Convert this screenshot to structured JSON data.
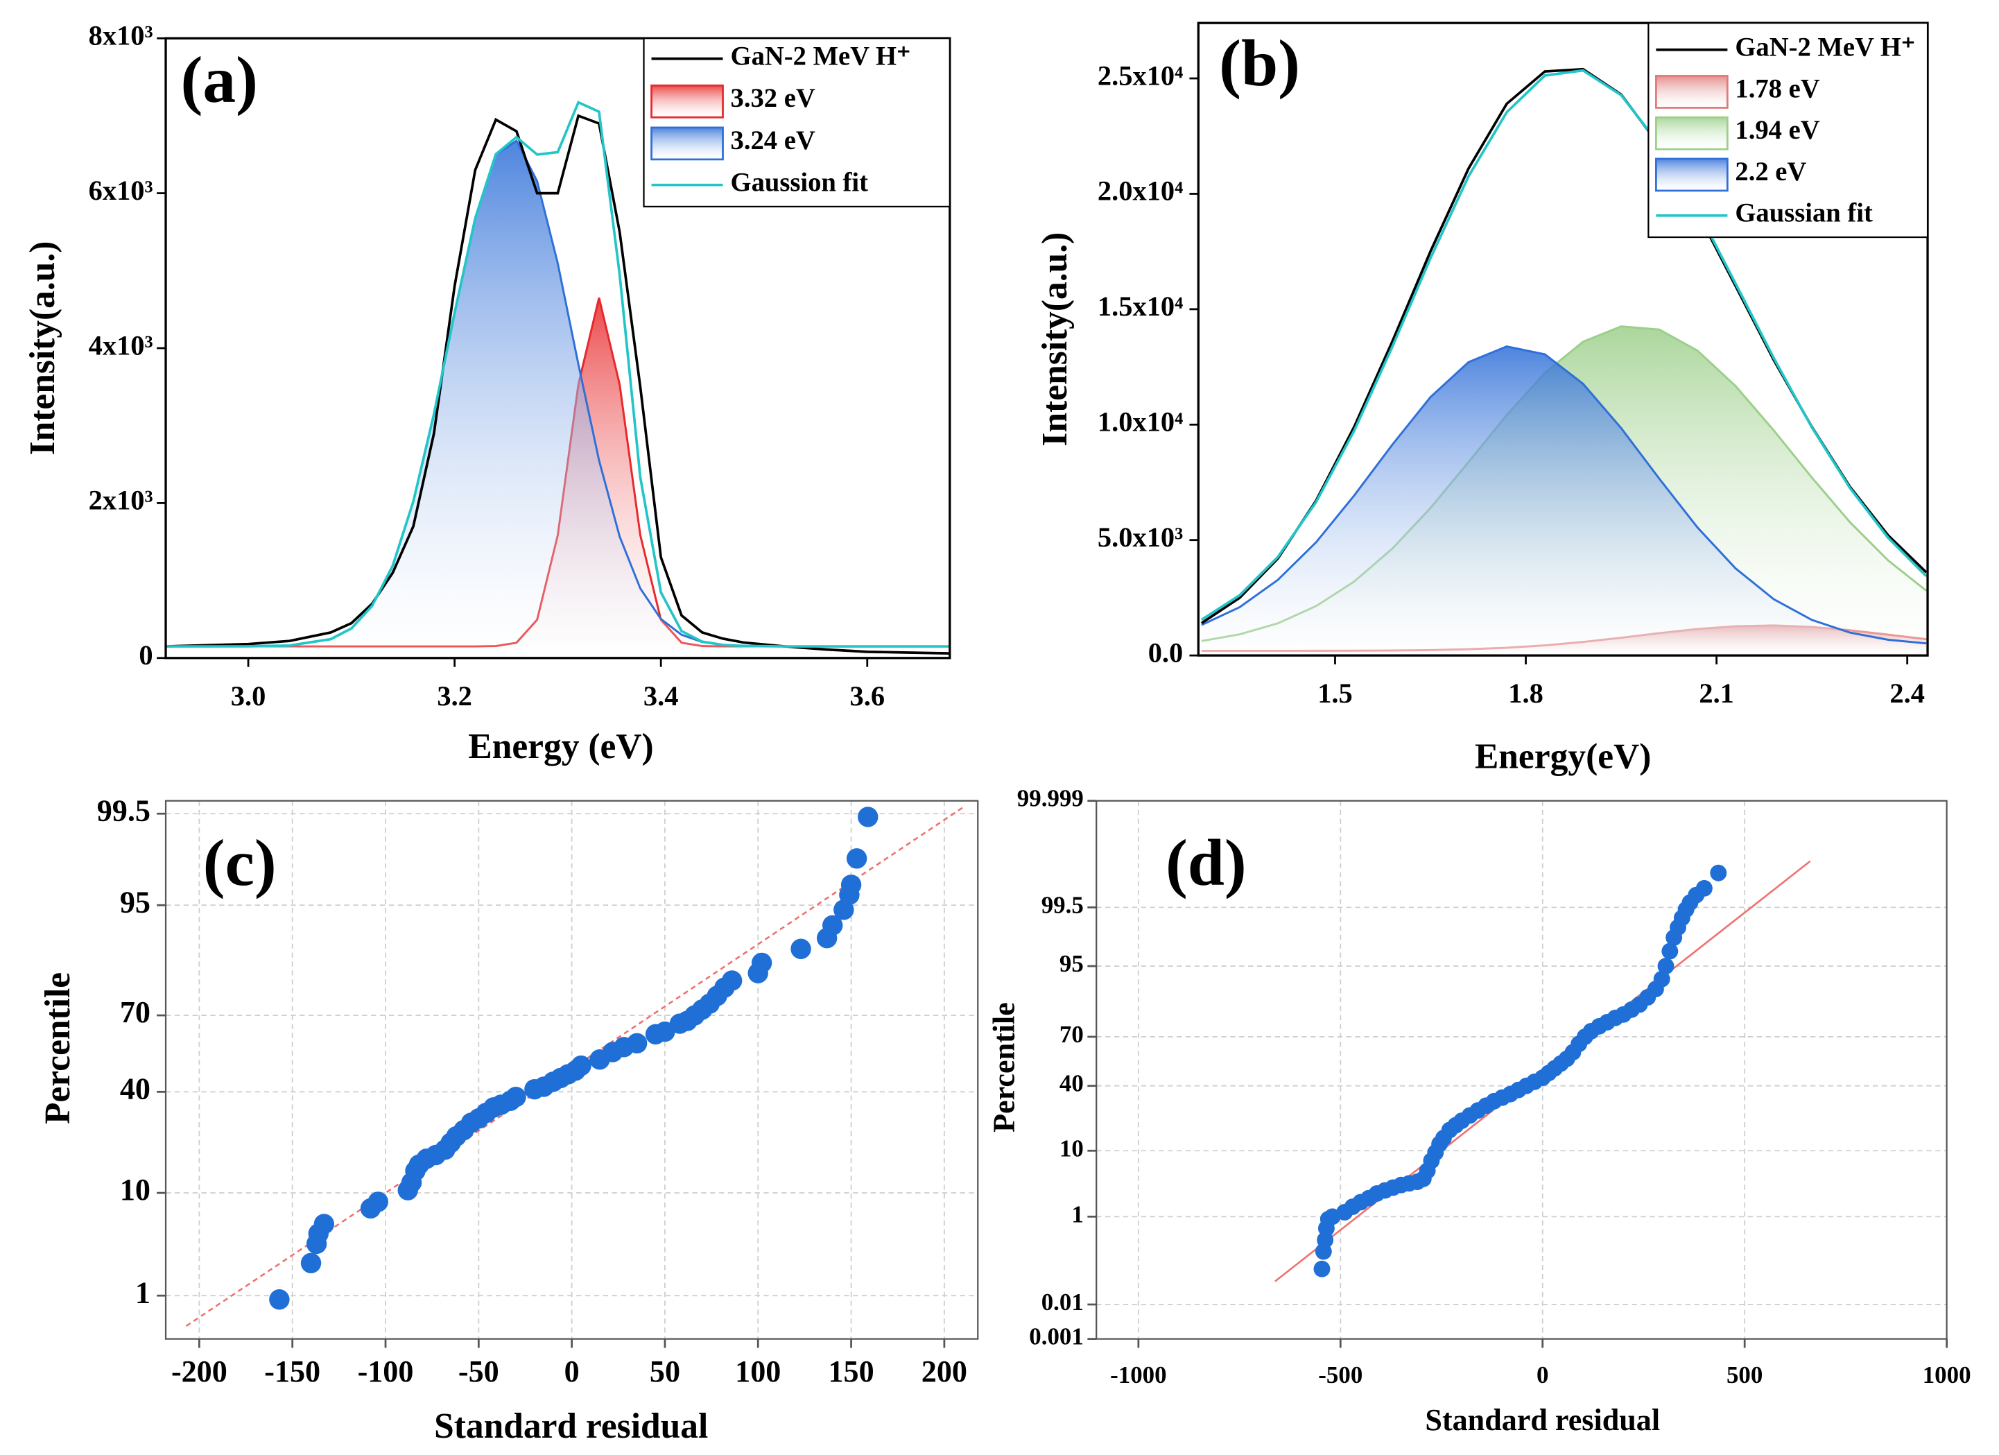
{
  "chart_data": [
    {
      "type": "line",
      "title": "(a)",
      "xlabel": "Energy (eV)",
      "ylabel": "Intensity(a.u.)",
      "xlim": [
        2.92,
        3.68
      ],
      "ylim": [
        0,
        8000
      ],
      "xticks": [
        {
          "value": 3,
          "label": "3.0"
        },
        3.2,
        3.4,
        3.6
      ],
      "yticks": [
        0,
        {
          "value": 2000,
          "label": "2x10³"
        },
        {
          "value": 4000,
          "label": "4x10³"
        },
        {
          "value": 6000,
          "label": "6x10³"
        },
        {
          "value": 8000,
          "label": "8x10³"
        }
      ],
      "legend": "upper right",
      "x": [
        2.92,
        2.96,
        3.0,
        3.04,
        3.08,
        3.1,
        3.12,
        3.14,
        3.16,
        3.18,
        3.2,
        3.22,
        3.24,
        3.26,
        3.28,
        3.3,
        3.32,
        3.34,
        3.36,
        3.38,
        3.4,
        3.42,
        3.44,
        3.46,
        3.48,
        3.52,
        3.56,
        3.6,
        3.64,
        3.68
      ],
      "series": [
        {
          "name": "GaN-2 MeV H⁺",
          "color": "#000000",
          "style": "line",
          "values": [
            150,
            165,
            180,
            220,
            330,
            450,
            700,
            1100,
            1700,
            2900,
            4800,
            6300,
            6950,
            6800,
            6000,
            6000,
            7000,
            6900,
            5500,
            3500,
            1300,
            550,
            330,
            250,
            200,
            150,
            110,
            80,
            70,
            60
          ]
        },
        {
          "name": "3.32 eV",
          "color": "#e8282a",
          "style": "area",
          "values": [
            150,
            150,
            150,
            150,
            150,
            150,
            150,
            150,
            150,
            150,
            150,
            150,
            154,
            197,
            494,
            1585,
            3531,
            4650,
            3531,
            1585,
            494,
            197,
            154,
            150,
            150,
            150,
            150,
            150,
            150,
            150
          ]
        },
        {
          "name": "3.24 eV",
          "color": "#2f6fd8",
          "style": "area",
          "values": [
            150,
            150,
            151,
            161,
            244,
            382,
            672,
            1191,
            2021,
            3148,
            4454,
            5676,
            6500,
            6677,
            6155,
            5095,
            3792,
            2552,
            1568,
            898,
            503,
            300,
            207,
            169,
            156,
            150,
            150,
            150,
            150,
            150
          ]
        },
        {
          "name": "Gaussion fit",
          "color": "#22c5c8",
          "style": "line",
          "values": [
            150,
            150,
            151,
            161,
            244,
            382,
            672,
            1191,
            2021,
            3148,
            4454,
            5676,
            6504,
            6724,
            6499,
            6530,
            7173,
            7052,
            4949,
            2333,
            847,
            347,
            211,
            169,
            156,
            150,
            150,
            150,
            150,
            150
          ]
        }
      ]
    },
    {
      "type": "line",
      "title": "(b)",
      "xlabel": "Energy(eV)",
      "ylabel": "Intensity(a.u.)",
      "xlim": [
        1.285,
        2.432
      ],
      "ylim": [
        0,
        27400
      ],
      "xticks": [
        1.5,
        1.8,
        2.1,
        2.4
      ],
      "yticks": [
        {
          "value": 0,
          "label": "0.0"
        },
        {
          "value": 5000,
          "label": "5.0x10³"
        },
        {
          "value": 10000,
          "label": "1.0x10⁴"
        },
        {
          "value": 15000,
          "label": "1.5x10⁴"
        },
        {
          "value": 20000,
          "label": "2.0x10⁴"
        },
        {
          "value": 25000,
          "label": "2.5x10⁴"
        }
      ],
      "legend": "upper right",
      "x": [
        1.29,
        1.35,
        1.41,
        1.47,
        1.53,
        1.59,
        1.65,
        1.71,
        1.77,
        1.83,
        1.89,
        1.95,
        2.01,
        2.07,
        2.13,
        2.19,
        2.25,
        2.31,
        2.37,
        2.43
      ],
      "series": [
        {
          "name": "GaN-2 MeV H⁺",
          "color": "#000000",
          "style": "line",
          "values": [
            1400,
            2500,
            4200,
            6700,
            9900,
            13600,
            17500,
            21100,
            23900,
            25300,
            25400,
            24300,
            22100,
            19200,
            16000,
            12800,
            9900,
            7300,
            5200,
            3600
          ]
        },
        {
          "name": "1.78 eV",
          "color": "#e07a7a",
          "style": "area",
          "values": [
            200,
            200,
            201,
            202,
            206,
            214,
            233,
            270,
            335,
            438,
            585,
            768,
            967,
            1146,
            1266,
            1299,
            1235,
            1091,
            901,
            704
          ]
        },
        {
          "name": "1.94 eV",
          "color": "#9ccf8a",
          "style": "area",
          "values": [
            626,
            915,
            1392,
            2137,
            3200,
            4627,
            6385,
            8380,
            10412,
            12240,
            13590,
            14255,
            14120,
            13207,
            11670,
            9750,
            7703,
            5770,
            4114,
            2806
          ]
        },
        {
          "name": "2.2 eV",
          "color": "#2f6fd8",
          "style": "area",
          "values": [
            1321,
            2092,
            3273,
            4900,
            6927,
            9130,
            11190,
            12710,
            13386,
            13046,
            11770,
            9850,
            7656,
            5546,
            3771,
            2437,
            1539,
            988,
            680,
            523
          ]
        },
        {
          "name": "Gaussian fit",
          "color": "#22c5c8",
          "style": "line",
          "values": [
            1547,
            2607,
            4266,
            6639,
            9733,
            13371,
            17208,
            20760,
            23533,
            25124,
            25345,
            24273,
            22143,
            19299,
            16107,
            12886,
            9877,
            7249,
            5095,
            3433
          ]
        }
      ]
    },
    {
      "type": "scatter",
      "title": "(c)",
      "xlabel": "Standard residual",
      "ylabel": "Percentile",
      "yscale": "probability",
      "grid": true,
      "xlim": [
        -218,
        218
      ],
      "ylim": [
        0.283,
        99.66
      ],
      "xticks": [
        -200,
        -150,
        -100,
        -50,
        0,
        50,
        100,
        150,
        200
      ],
      "yticks": [
        1,
        10,
        40,
        70,
        95,
        99.5
      ],
      "series": [
        {
          "color": "#1f6fd6",
          "style": "points",
          "x": [
            -157,
            -140,
            -137,
            -136,
            -133,
            -108,
            -104,
            -88,
            -86,
            -84,
            -82,
            -78,
            -73,
            -68,
            -65,
            -62,
            -58,
            -54,
            -50,
            -46,
            -42,
            -38,
            -33,
            -30,
            -20,
            -15,
            -10,
            -6,
            -2,
            2,
            5,
            15,
            22,
            28,
            35,
            45,
            50,
            58,
            62,
            66,
            70,
            74,
            78,
            82,
            86,
            100,
            102,
            123,
            137,
            140,
            146,
            149,
            150,
            153,
            159
          ],
          "values": [
            0.9,
            2.3,
            3.6,
            4.5,
            5.5,
            7.5,
            8.5,
            10.5,
            12,
            14.5,
            16,
            17.5,
            18.5,
            20,
            22,
            24,
            26,
            28.5,
            30,
            32,
            34,
            35,
            36.5,
            38,
            41,
            42,
            44,
            45.5,
            47,
            48.5,
            50.5,
            53,
            56,
            58,
            59.5,
            63,
            64,
            67,
            68,
            70,
            72,
            74,
            76.5,
            79,
            81,
            83,
            85.5,
            88.5,
            90.5,
            92.5,
            94.5,
            96,
            96.8,
            98.3,
            99.45
          ]
        },
        {
          "color": "#f07070",
          "style": "dashed-line",
          "x": [
            -207,
            211
          ],
          "values": [
            0.42,
            99.6
          ]
        }
      ]
    },
    {
      "type": "scatter",
      "title": "(d)",
      "xlabel": "Standard residual",
      "ylabel": "Percentile",
      "yscale": "probability",
      "grid": true,
      "xlim": [
        -1104,
        1000
      ],
      "ylim": [
        0.001,
        99.999
      ],
      "xticks": [
        -1000,
        -500,
        0,
        500,
        1000
      ],
      "yticks": [
        0.001,
        0.01,
        1,
        10,
        40,
        70,
        95,
        99.5,
        99.999
      ],
      "series": [
        {
          "color": "#1f6fd6",
          "style": "points",
          "x": [
            -546,
            -542,
            -538,
            -535,
            -530,
            -520,
            -490,
            -470,
            -450,
            -430,
            -410,
            -390,
            -370,
            -350,
            -330,
            -310,
            -295,
            -285,
            -275,
            -265,
            -255,
            -245,
            -230,
            -215,
            -200,
            -180,
            -160,
            -140,
            -120,
            -100,
            -80,
            -60,
            -40,
            -20,
            0,
            15,
            30,
            45,
            60,
            75,
            90,
            105,
            120,
            140,
            160,
            180,
            200,
            220,
            240,
            260,
            280,
            295,
            305,
            315,
            325,
            335,
            345,
            355,
            365,
            380,
            400,
            435
          ],
          "values": [
            0.08,
            0.2,
            0.35,
            0.6,
            0.9,
            1.0,
            1.2,
            1.5,
            1.8,
            2.1,
            2.5,
            2.8,
            3.1,
            3.4,
            3.6,
            3.8,
            4.2,
            5.5,
            7.5,
            9.5,
            12,
            14,
            17,
            19,
            21,
            23.5,
            26,
            28.5,
            31,
            33,
            35,
            37.5,
            40,
            42.5,
            45,
            48,
            51,
            54,
            57,
            61,
            66,
            70,
            73,
            75.5,
            77.5,
            79.5,
            81,
            83,
            85,
            87.5,
            90,
            92.5,
            95,
            97,
            98.2,
            98.8,
            99.2,
            99.45,
            99.6,
            99.72,
            99.8,
            99.91
          ]
        },
        {
          "color": "#f07070",
          "style": "solid-line",
          "x": [
            -662,
            662
          ],
          "values": [
            0.04,
            99.953
          ]
        }
      ]
    }
  ]
}
